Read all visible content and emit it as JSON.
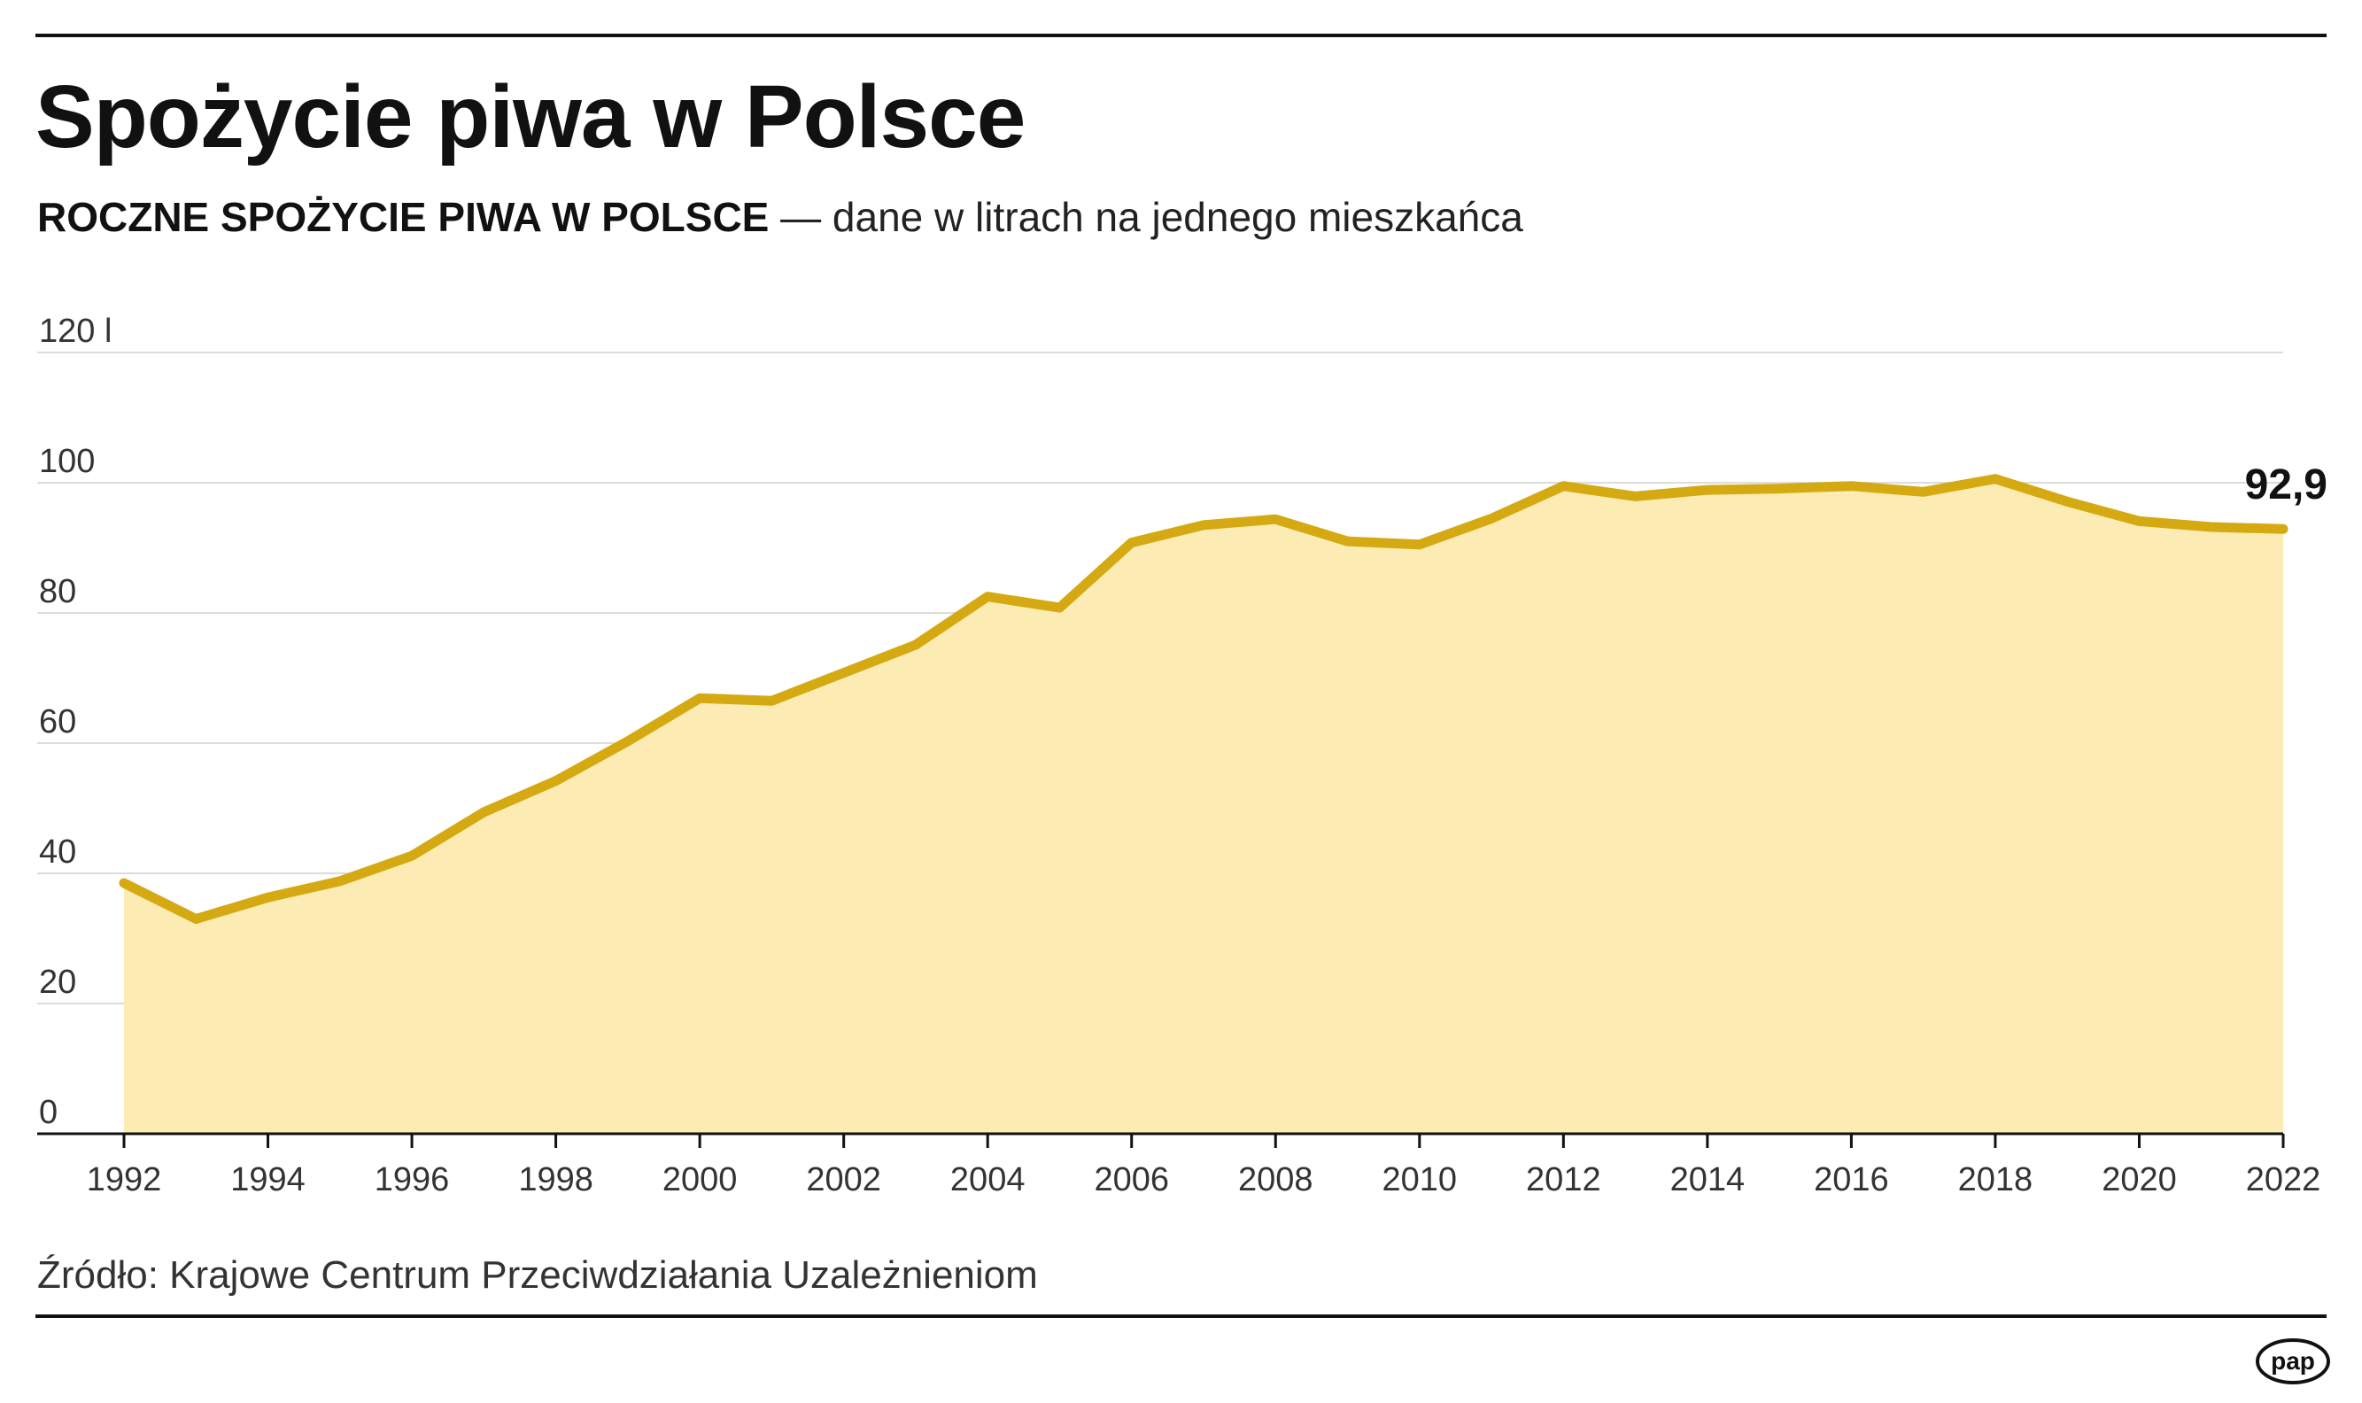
{
  "title": "Spożycie piwa w Polsce",
  "subtitle": {
    "strong": "ROCZNE SPOŻYCIE PIWA W POLSCE",
    "rest": " — dane w litrach na jednego mieszkańca"
  },
  "source": "Źródło: Krajowe Centrum Przeciwdziałania Uzależnieniom",
  "logo_text": "pap",
  "colors": {
    "line": "#d4a912",
    "fill": "#fcebb2",
    "grid": "#dcdcdc",
    "axis": "#111111"
  },
  "chart_data": {
    "type": "area",
    "title": "",
    "xlabel": "",
    "ylabel": "",
    "x": [
      1992,
      1993,
      1994,
      1995,
      1996,
      1997,
      1998,
      1999,
      2000,
      2001,
      2002,
      2003,
      2004,
      2005,
      2006,
      2007,
      2008,
      2009,
      2010,
      2011,
      2012,
      2013,
      2014,
      2015,
      2016,
      2017,
      2018,
      2019,
      2020,
      2021,
      2022
    ],
    "values": [
      38.5,
      33.0,
      36.3,
      38.8,
      42.7,
      49.4,
      54.2,
      60.3,
      66.9,
      66.5,
      70.8,
      75.1,
      82.5,
      80.8,
      90.8,
      93.5,
      94.4,
      91.0,
      90.5,
      94.5,
      99.5,
      97.9,
      98.9,
      99.1,
      99.5,
      98.6,
      100.6,
      97.1,
      94.1,
      93.2,
      92.9
    ],
    "ylim": [
      0,
      120
    ],
    "yticks": [
      0,
      20,
      40,
      60,
      80,
      100,
      120
    ],
    "ytick_labels": [
      "0",
      "20",
      "40",
      "60",
      "80",
      "100",
      "120 l"
    ],
    "xticks": [
      1992,
      1994,
      1996,
      1998,
      2000,
      2002,
      2004,
      2006,
      2008,
      2010,
      2012,
      2014,
      2016,
      2018,
      2020,
      2022
    ],
    "xtick_labels": [
      "1992",
      "1994",
      "1996",
      "1998",
      "2000",
      "2002",
      "2004",
      "2006",
      "2008",
      "2010",
      "2012",
      "2014",
      "2016",
      "2018",
      "2020",
      "2022"
    ],
    "grid": true,
    "end_label": "92,9"
  }
}
